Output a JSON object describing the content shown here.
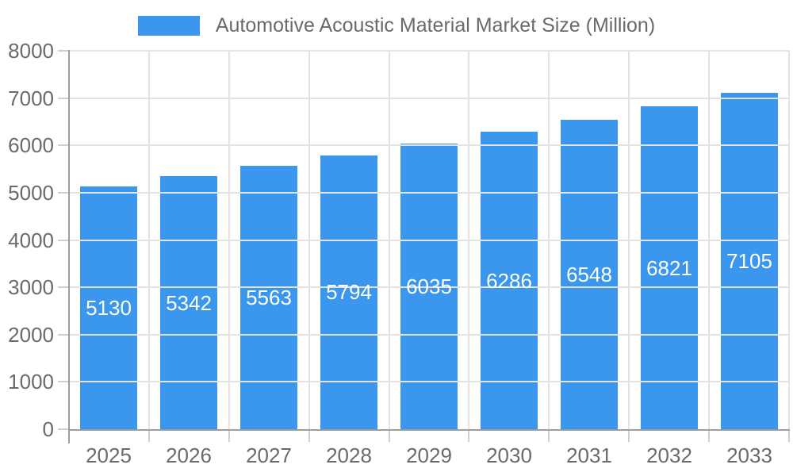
{
  "legend": {
    "label": "Automotive Acoustic Material Market Size (Million)"
  },
  "chart_data": {
    "type": "bar",
    "title": "Automotive Acoustic Material Market Size (Million)",
    "series_name": "Automotive Acoustic Material Market Size (Million)",
    "categories": [
      "2025",
      "2026",
      "2027",
      "2028",
      "2029",
      "2030",
      "2031",
      "2032",
      "2033"
    ],
    "values": [
      5130,
      5342,
      5563,
      5794,
      6035,
      6286,
      6548,
      6821,
      7105
    ],
    "value_labels": [
      "5130",
      "5342",
      "5563",
      "5794",
      "6035",
      "6286",
      "6548",
      "6821",
      "7105"
    ],
    "xlabel": "",
    "ylabel": "",
    "ylim": [
      0,
      8000
    ],
    "ytick_step": 1000,
    "ytick_labels": [
      "0",
      "1000",
      "2000",
      "3000",
      "4000",
      "5000",
      "6000",
      "7000",
      "8000"
    ],
    "grid": true,
    "legend_position": "top",
    "colors": {
      "bar": "#3B96ED",
      "value_label": "#FFFFFF",
      "grid_line": "#E3E3E3",
      "axis_line": "#9E9E9E",
      "tick_line": "#CFCFCF",
      "text": "#6A6A6A",
      "background": "#FFFFFF"
    }
  }
}
